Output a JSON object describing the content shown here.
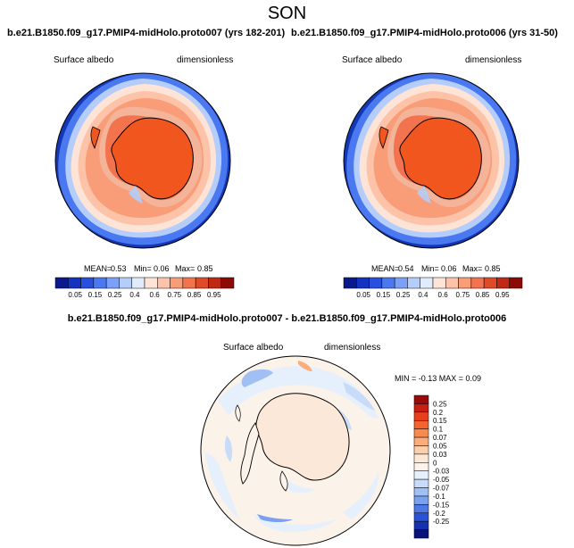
{
  "figure": {
    "season": "SON"
  },
  "panels": [
    {
      "title": "b.e21.B1850.f09_g17.PMIP4-midHolo.proto007 (yrs 182-201)",
      "left_label": "Surface albedo",
      "right_label": "dimensionless",
      "stats": {
        "mean_label": "MEAN=",
        "mean": "0.53",
        "min_label": "Min=",
        "min": "0.06",
        "max_label": "Max=",
        "max": "0.85"
      }
    },
    {
      "title": "b.e21.B1850.f09_g17.PMIP4-midHolo.proto006 (yrs 31-50)",
      "left_label": "Surface albedo",
      "right_label": "dimensionless",
      "stats": {
        "mean_label": "MEAN=",
        "mean": "0.54",
        "min_label": "Min=",
        "min": "0.06",
        "max_label": "Max=",
        "max": "0.85"
      }
    }
  ],
  "abs_colorbar": {
    "colors": [
      "#0a1a8c",
      "#1432c0",
      "#2850e0",
      "#4a78f0",
      "#7aa0f8",
      "#b4cdfa",
      "#e0ecfb",
      "#fde4d6",
      "#fcc3a8",
      "#f99c78",
      "#f2734e",
      "#e04a28",
      "#c02a14",
      "#8c0a06"
    ],
    "labels": [
      "0.05",
      "0.15",
      "0.25",
      "0.4",
      "0.6",
      "0.75",
      "0.85",
      "0.95"
    ]
  },
  "diff_panel": {
    "title": "b.e21.B1850.f09_g17.PMIP4-midHolo.proto007 - b.e21.B1850.f09_g17.PMIP4-midHolo.proto006",
    "left_label": "Surface albedo",
    "right_label": "dimensionless",
    "minmax": "MIN = -0.13 MAX = 0.09"
  },
  "diff_colorbar": {
    "colors": [
      "#9a0a0a",
      "#c81e14",
      "#e8401e",
      "#f4642e",
      "#f88a4e",
      "#fbad7c",
      "#fccfac",
      "#fde8d8",
      "#fbf2ea",
      "#e6f0fc",
      "#c8dcfa",
      "#a0c0f4",
      "#7aa0ee",
      "#4e78e6",
      "#2a52d4",
      "#1432b0",
      "#0a1478"
    ],
    "labels": [
      "0.25",
      "0.2",
      "0.15",
      "0.1",
      "0.07",
      "0.05",
      "0.03",
      "0",
      "-0.03",
      "-0.05",
      "-0.07",
      "-0.1",
      "-0.15",
      "-0.2",
      "-0.25"
    ]
  }
}
